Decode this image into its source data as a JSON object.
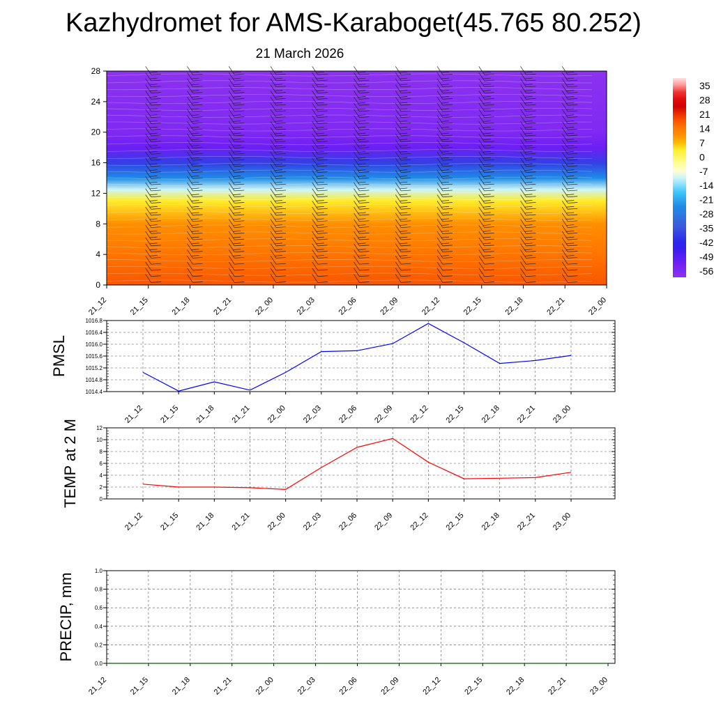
{
  "title": "Kazhydromet for AMS-Karaboget(45.765 80.252)",
  "subtitle": "21 March 2026",
  "time_labels": [
    "21_12",
    "21_15",
    "21_18",
    "21_21",
    "22_00",
    "22_03",
    "22_06",
    "22_09",
    "22_12",
    "22_15",
    "22_18",
    "22_21",
    "23_00"
  ],
  "colors": {
    "pmsl_line": "#0000ff",
    "temp_line": "#ff0000",
    "precip_line": "#006400",
    "grid": "#555555"
  },
  "chart_data": [
    {
      "id": "cross_section",
      "type": "heatmap",
      "title": "",
      "xlabel": "",
      "ylabel": "",
      "x": [
        "21_12",
        "21_15",
        "21_18",
        "21_21",
        "22_00",
        "22_03",
        "22_06",
        "22_09",
        "22_12",
        "22_15",
        "22_18",
        "22_21",
        "23_00"
      ],
      "ylim": [
        0,
        28
      ],
      "yticks": [
        0,
        4,
        8,
        12,
        16,
        20,
        24,
        28
      ],
      "vertical_profile": [
        {
          "level": 0,
          "value": 14
        },
        {
          "level": 4,
          "value": 11
        },
        {
          "level": 8,
          "value": 7
        },
        {
          "level": 11,
          "value": 0
        },
        {
          "level": 12.5,
          "value": -14
        },
        {
          "level": 14,
          "value": -28
        },
        {
          "level": 16,
          "value": -42
        },
        {
          "level": 18,
          "value": -56
        },
        {
          "level": 20,
          "value": -60
        },
        {
          "level": 28,
          "value": -63
        }
      ],
      "colorbar": {
        "labels": [
          "35",
          "28",
          "21",
          "14",
          "7",
          "0",
          "-7",
          "-14",
          "-21",
          "-28",
          "-35",
          "-42",
          "-49",
          "-56"
        ],
        "min": -63,
        "max": 35
      }
    },
    {
      "id": "pmsl",
      "type": "line",
      "ylabel": "PMSL",
      "x": [
        "21_12",
        "21_15",
        "21_18",
        "21_21",
        "22_00",
        "22_03",
        "22_06",
        "22_09",
        "22_12",
        "22_15",
        "22_18",
        "22_21",
        "23_00"
      ],
      "ylim": [
        1014.4,
        1016.8
      ],
      "yticks": [
        "1014.4",
        "1014.8",
        "1015.2",
        "1015.6",
        "1016.0",
        "1016.4",
        "1016.8"
      ],
      "series": [
        {
          "name": "PMSL",
          "values": [
            1015.05,
            1014.42,
            1014.73,
            1014.45,
            1015.05,
            1015.75,
            1015.78,
            1016.02,
            1016.7,
            1016.05,
            1015.35,
            1015.45,
            1015.62
          ]
        }
      ]
    },
    {
      "id": "temp",
      "type": "line",
      "ylabel": "TEMP at 2 M",
      "x": [
        "21_12",
        "21_15",
        "21_18",
        "21_21",
        "22_00",
        "22_03",
        "22_06",
        "22_09",
        "22_12",
        "22_15",
        "22_18",
        "22_21",
        "23_00"
      ],
      "ylim": [
        0,
        12
      ],
      "yticks": [
        "0",
        "2",
        "4",
        "6",
        "8",
        "10",
        "12"
      ],
      "series": [
        {
          "name": "T2m",
          "values": [
            2.5,
            2.0,
            2.0,
            1.9,
            1.6,
            5.3,
            8.7,
            10.2,
            6.2,
            3.4,
            3.5,
            3.6,
            4.5
          ]
        }
      ]
    },
    {
      "id": "precip",
      "type": "line",
      "ylabel": "PRECIP, mm",
      "x": [
        "21_12",
        "21_15",
        "21_18",
        "21_21",
        "22_00",
        "22_03",
        "22_06",
        "22_09",
        "22_12",
        "22_15",
        "22_18",
        "22_21",
        "23_00"
      ],
      "ylim": [
        0,
        1.0
      ],
      "yticks": [
        "0.0",
        "0.2",
        "0.4",
        "0.6",
        "0.8",
        "1.0"
      ],
      "series": [
        {
          "name": "Precip",
          "values": [
            0,
            0,
            0,
            0,
            0,
            0,
            0,
            0,
            0,
            0,
            0,
            0,
            0
          ]
        }
      ]
    }
  ]
}
